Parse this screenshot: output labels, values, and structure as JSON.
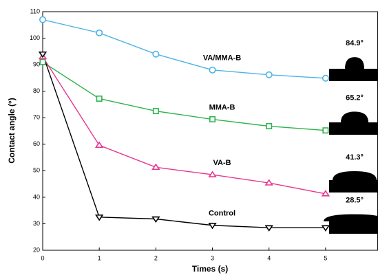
{
  "chart_data": {
    "type": "line",
    "x_label": "Times (s)",
    "y_label": "Contact angle (°)",
    "x": [
      0,
      1,
      2,
      3,
      4,
      5
    ],
    "series": [
      {
        "name": "VA/MMA-B",
        "color": "#4db3e6",
        "marker": "circle",
        "values": [
          107,
          102,
          94,
          88,
          86.2,
          84.9
        ],
        "end_label": "84.9°"
      },
      {
        "name": "MMA-B",
        "color": "#2db34a",
        "marker": "square",
        "values": [
          91,
          77.2,
          72.5,
          69.4,
          66.8,
          65.2
        ],
        "end_label": "65.2°"
      },
      {
        "name": "VA-B",
        "color": "#e8358f",
        "marker": "triangle-up",
        "values": [
          93,
          59.6,
          51.3,
          48.5,
          45.4,
          41.3
        ],
        "end_label": "41.3°"
      },
      {
        "name": "Control",
        "color": "#000000",
        "marker": "triangle-down",
        "values": [
          94,
          32.5,
          31.8,
          29.4,
          28.5,
          28.5
        ],
        "end_label": "28.5°"
      }
    ],
    "xlim": [
      0,
      5.92
    ],
    "xticks": [
      0,
      1,
      2,
      3,
      4,
      5
    ],
    "ylim": [
      20,
      110
    ],
    "yticks": [
      20,
      30,
      40,
      50,
      60,
      70,
      80,
      90,
      100,
      110
    ]
  }
}
